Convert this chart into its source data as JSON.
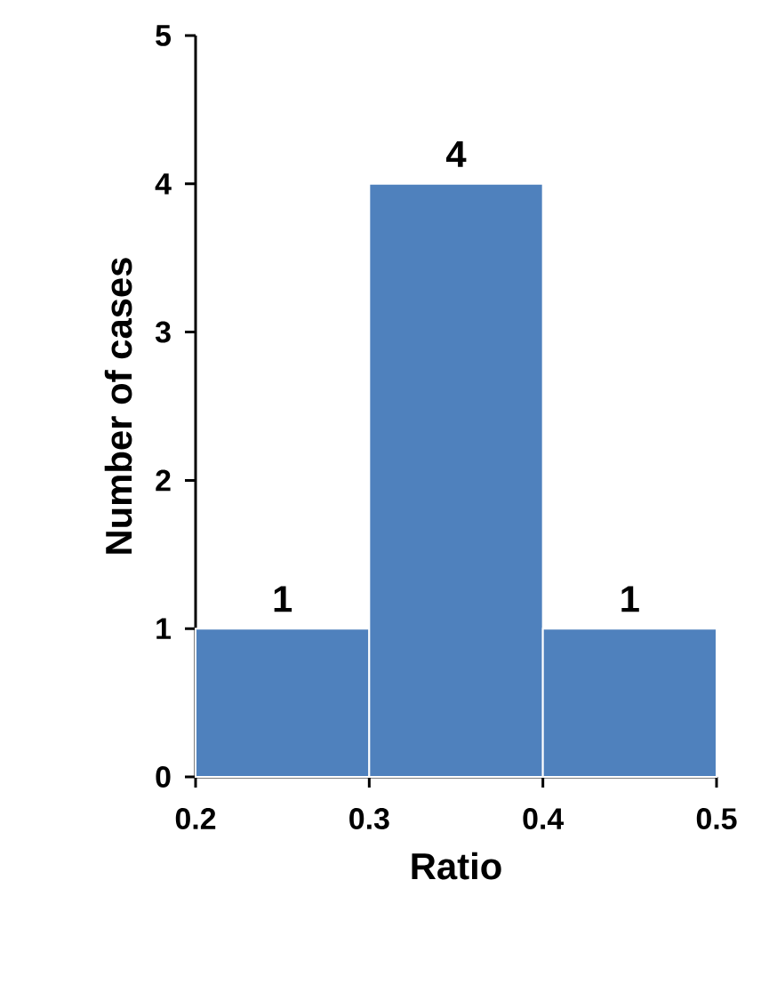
{
  "chart_data": {
    "type": "histogram",
    "xlabel": "Ratio",
    "ylabel": "Number of cases",
    "bins": [
      0.2,
      0.3,
      0.4,
      0.5
    ],
    "values": [
      1,
      4,
      1
    ],
    "color": "#4f81bd",
    "xlim": [
      0.2,
      0.5
    ],
    "xticks": [
      0.2,
      0.3,
      0.4,
      0.5
    ],
    "ylim": [
      0,
      5
    ],
    "yticks": [
      0,
      1,
      2,
      3,
      4,
      5
    ],
    "data_labels": true
  }
}
